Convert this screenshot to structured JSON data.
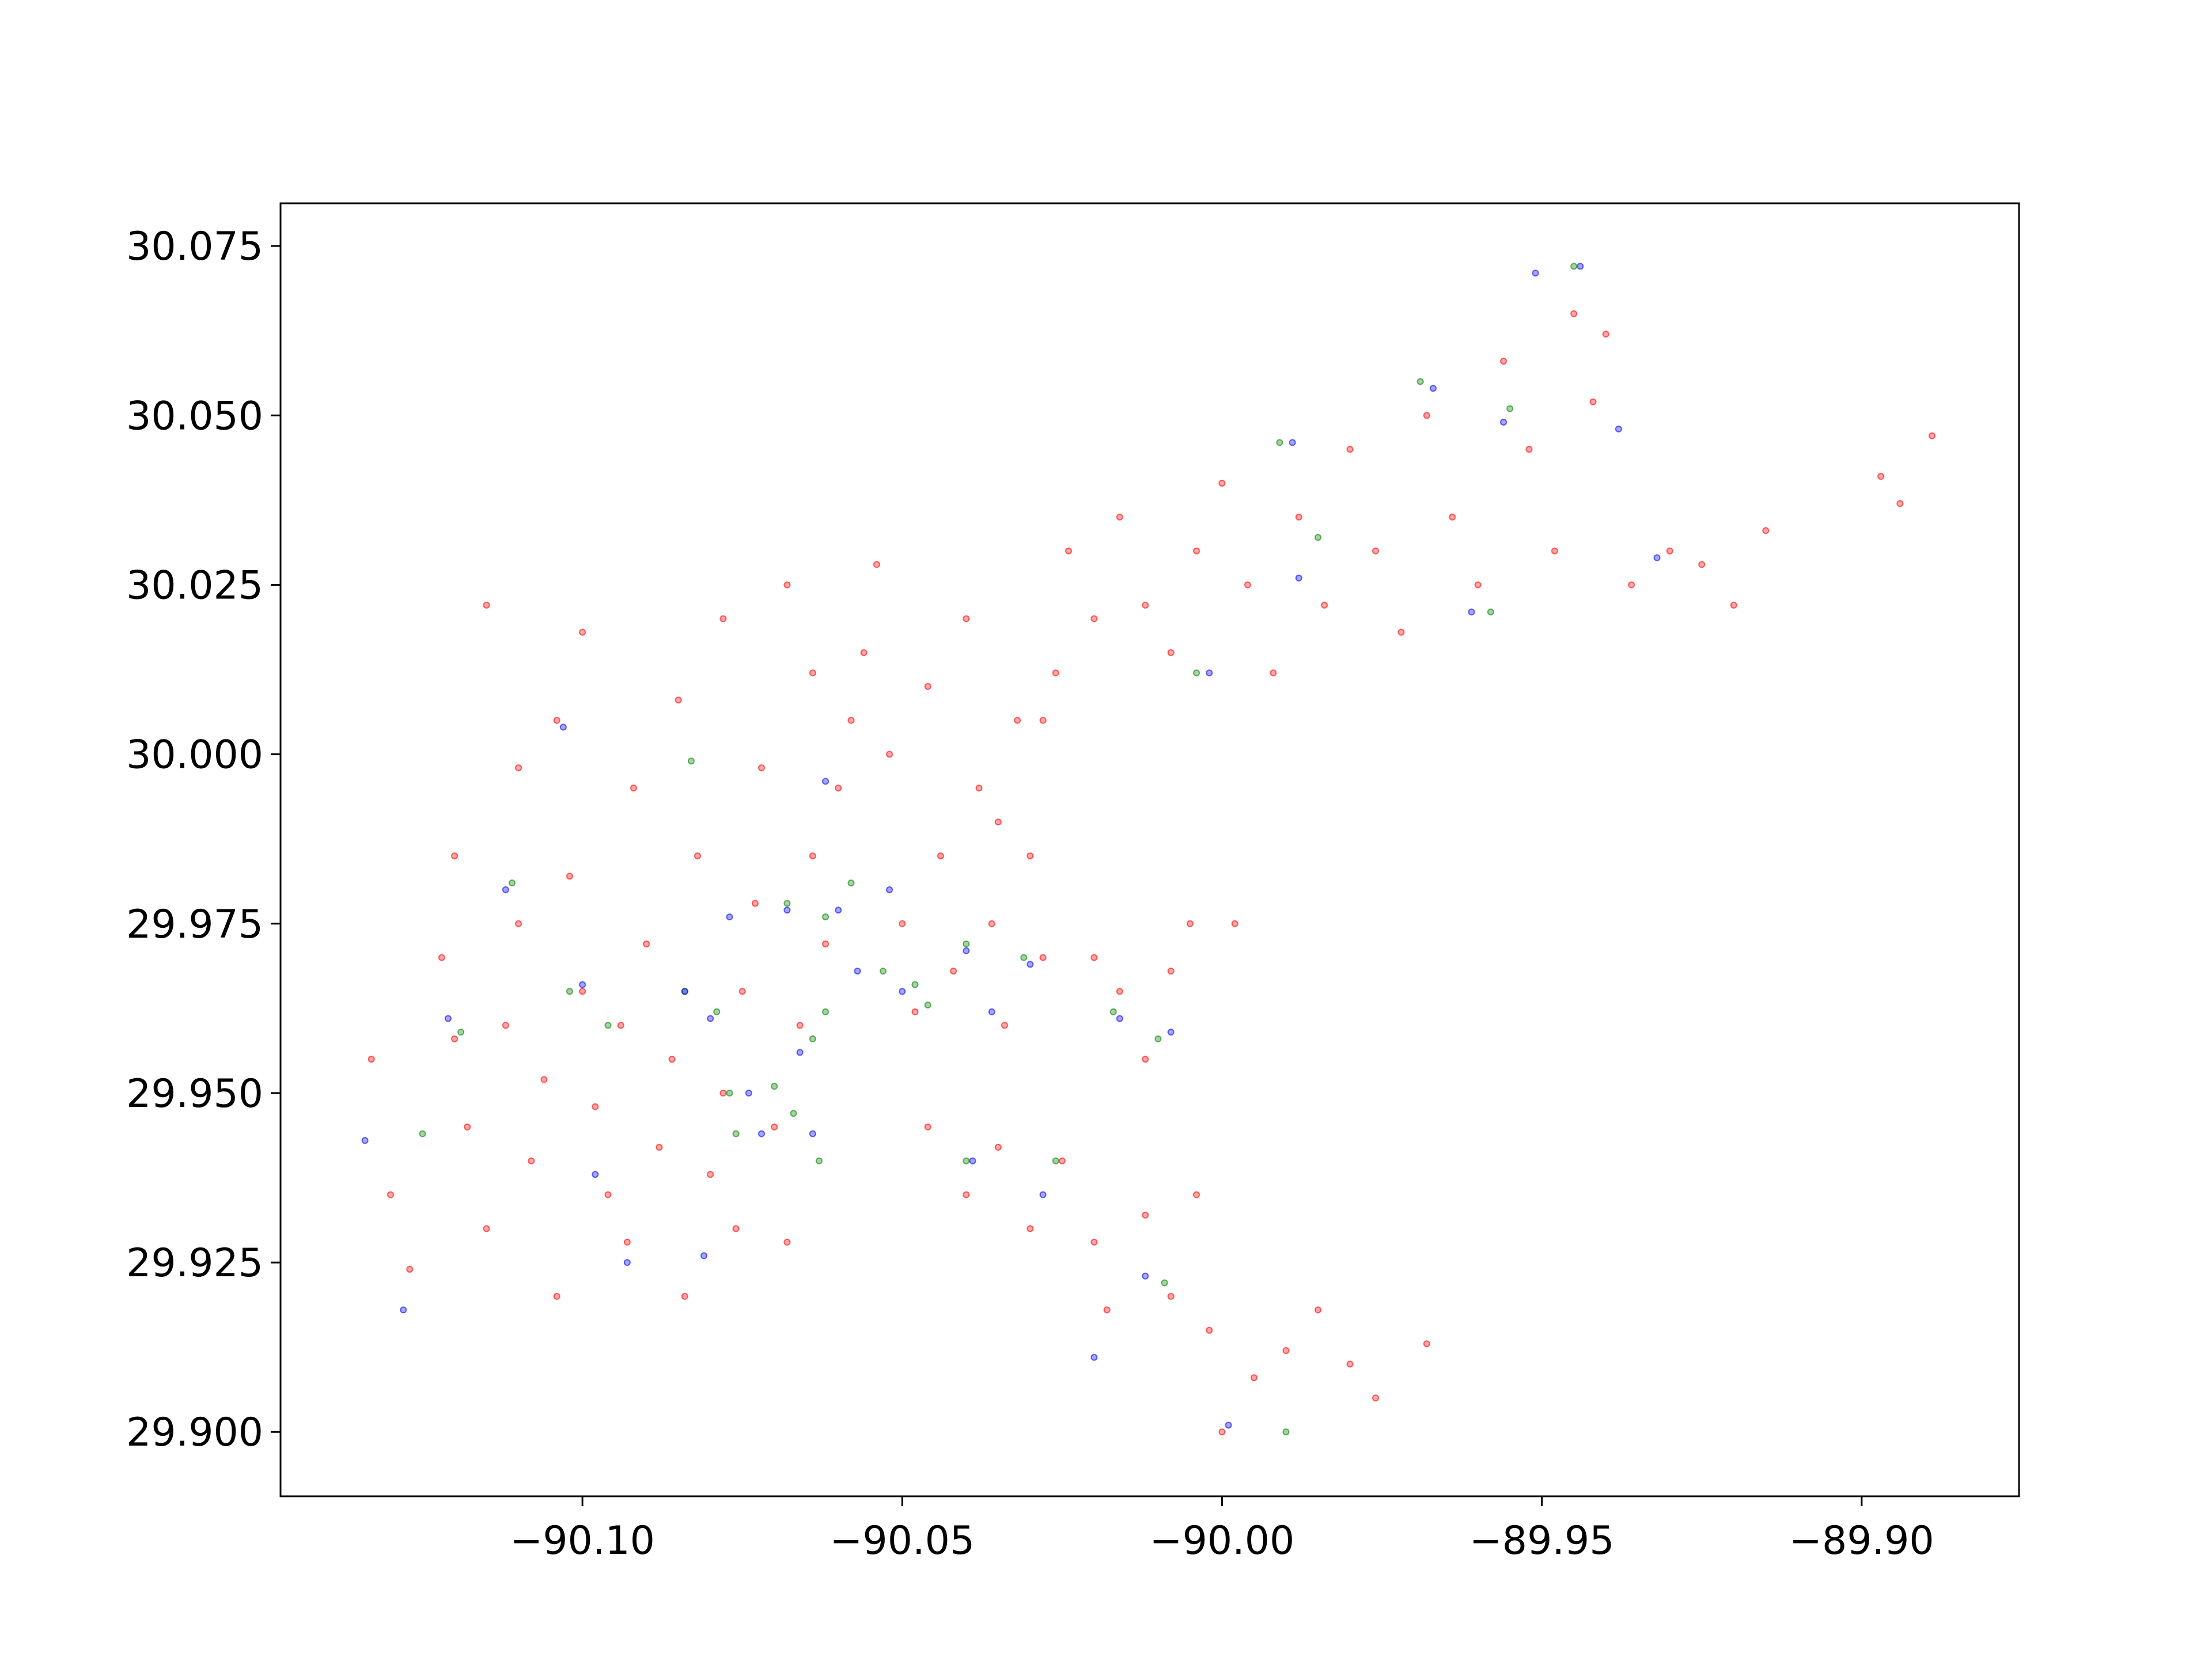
{
  "chart_data": {
    "type": "scatter",
    "xlim": [
      -90.1472,
      -89.8754
    ],
    "ylim": [
      29.8905,
      30.0813
    ],
    "xticks": [
      {
        "value": -90.1,
        "label": "−90.10"
      },
      {
        "value": -90.05,
        "label": "−90.05"
      },
      {
        "value": -90.0,
        "label": "−90.00"
      },
      {
        "value": -89.95,
        "label": "−89.95"
      },
      {
        "value": -89.9,
        "label": "−89.90"
      }
    ],
    "yticks": [
      {
        "value": 29.9,
        "label": "29.900"
      },
      29.925,
      {
        "value": 29.95,
        "label": "29.950"
      },
      29.975,
      {
        "value": 30.0,
        "label": "30.000"
      },
      30.025,
      {
        "value": 30.05,
        "label": "30.050"
      },
      30.075
    ],
    "grid": false,
    "series": [
      {
        "color": "#ff0000",
        "x": [
          -90.133,
          -90.13,
          -90.127,
          -90.122,
          -90.12,
          -90.118,
          -90.115,
          -90.112,
          -90.11,
          -90.108,
          -90.106,
          -90.104,
          -90.102,
          -90.1,
          -90.098,
          -90.096,
          -90.094,
          -90.093,
          -90.09,
          -90.088,
          -90.086,
          -90.084,
          -90.082,
          -90.08,
          -90.078,
          -90.076,
          -90.075,
          -90.073,
          -90.07,
          -90.068,
          -90.066,
          -90.064,
          -90.062,
          -90.06,
          -90.058,
          -90.056,
          -90.054,
          -90.052,
          -90.05,
          -90.048,
          -90.046,
          -90.044,
          -90.042,
          -90.04,
          -90.038,
          -90.036,
          -90.034,
          -90.032,
          -90.03,
          -90.028,
          -90.1,
          -90.092,
          -90.085,
          -90.078,
          -90.072,
          -90.068,
          -90.064,
          -90.11,
          -90.115,
          -90.12,
          -90.104,
          -90.046,
          -90.04,
          -90.035,
          -90.03,
          -90.025,
          -90.02,
          -90.018,
          -90.012,
          -90.008,
          -90.004,
          -90.002,
          -90.0,
          -89.995,
          -89.99,
          -89.985,
          -89.98,
          -89.976,
          -89.968,
          -90.02,
          -90.016,
          -90.012,
          -90.008,
          -90.005,
          -89.998,
          -90.024,
          -90.02,
          -90.016,
          -90.012,
          -90.008,
          -90.004,
          -90.0,
          -89.996,
          -89.992,
          -89.988,
          -89.984,
          -89.98,
          -89.976,
          -89.972,
          -89.968,
          -89.964,
          -89.96,
          -89.956,
          -89.952,
          -89.948,
          -89.945,
          -89.942,
          -89.94,
          -89.936,
          -89.93,
          -89.925,
          -89.92,
          -89.915,
          -89.897,
          -89.894,
          -89.889,
          -90.028,
          -90.035,
          -90.026
        ],
        "y": [
          29.955,
          29.935,
          29.924,
          29.97,
          29.958,
          29.945,
          29.93,
          29.96,
          29.975,
          29.94,
          29.952,
          29.92,
          29.982,
          29.965,
          29.948,
          29.935,
          29.96,
          29.928,
          29.972,
          29.942,
          29.955,
          29.92,
          29.985,
          29.938,
          29.95,
          29.93,
          29.965,
          29.978,
          29.945,
          29.928,
          29.96,
          29.985,
          29.972,
          29.995,
          30.005,
          30.015,
          30.028,
          30.0,
          29.975,
          29.962,
          30.01,
          29.985,
          29.968,
          30.02,
          29.995,
          29.975,
          29.96,
          30.005,
          29.985,
          29.97,
          30.018,
          29.995,
          30.008,
          30.02,
          29.998,
          30.025,
          30.012,
          29.998,
          30.022,
          29.985,
          30.005,
          29.945,
          29.935,
          29.942,
          29.93,
          29.94,
          29.928,
          29.918,
          29.932,
          29.92,
          29.935,
          29.915,
          29.9,
          29.908,
          29.912,
          29.918,
          29.91,
          29.905,
          29.913,
          29.97,
          29.965,
          29.955,
          29.968,
          29.975,
          29.975,
          30.03,
          30.02,
          30.035,
          30.022,
          30.015,
          30.03,
          30.04,
          30.025,
          30.012,
          30.035,
          30.022,
          30.045,
          30.03,
          30.018,
          30.05,
          30.035,
          30.025,
          30.058,
          30.045,
          30.03,
          30.065,
          30.052,
          30.062,
          30.025,
          30.03,
          30.028,
          30.022,
          30.033,
          30.041,
          30.037,
          30.047,
          30.005,
          29.99,
          30.012
        ]
      },
      {
        "color": "#008000",
        "x": [
          -90.083,
          -90.111,
          -90.102,
          -90.096,
          -90.084,
          -90.079,
          -90.068,
          -90.062,
          -90.058,
          -90.053,
          -90.048,
          -90.04,
          -90.031,
          -90.064,
          -90.062,
          -90.077,
          -90.07,
          -90.076,
          -90.067,
          -90.063,
          -90.046,
          -90.017,
          -90.01,
          -90.04,
          -90.026,
          -90.009,
          -89.991,
          -89.969,
          -89.955,
          -89.945,
          -89.958,
          -90.004,
          -89.99,
          -90.125,
          -90.119,
          -89.985
        ],
        "y": [
          29.999,
          29.981,
          29.965,
          29.96,
          29.965,
          29.962,
          29.978,
          29.976,
          29.981,
          29.968,
          29.966,
          29.972,
          29.97,
          29.958,
          29.962,
          29.95,
          29.951,
          29.944,
          29.947,
          29.94,
          29.963,
          29.962,
          29.958,
          29.94,
          29.94,
          29.922,
          30.046,
          30.055,
          30.051,
          30.072,
          30.021,
          30.012,
          29.9,
          29.944,
          29.959,
          30.032
        ]
      },
      {
        "color": "#0000ff",
        "x": [
          -90.103,
          -90.112,
          -90.121,
          -90.134,
          -90.128,
          -90.1,
          -90.084,
          -90.08,
          -90.077,
          -90.068,
          -90.06,
          -90.052,
          -90.057,
          -90.05,
          -90.04,
          -90.03,
          -90.036,
          -90.066,
          -90.074,
          -90.072,
          -90.064,
          -90.098,
          -90.093,
          -90.081,
          -90.016,
          -90.008,
          -90.039,
          -90.028,
          -90.012,
          -90.02,
          -89.999,
          -90.002,
          -89.988,
          -89.989,
          -89.967,
          -89.956,
          -89.961,
          -89.944,
          -89.951,
          -89.938,
          -89.932,
          -90.062
        ],
        "y": [
          30.004,
          29.98,
          29.961,
          29.943,
          29.918,
          29.966,
          29.965,
          29.961,
          29.976,
          29.977,
          29.977,
          29.98,
          29.968,
          29.965,
          29.971,
          29.969,
          29.962,
          29.956,
          29.95,
          29.944,
          29.944,
          29.938,
          29.925,
          29.926,
          29.961,
          29.959,
          29.94,
          29.935,
          29.923,
          29.911,
          29.901,
          30.012,
          30.026,
          30.046,
          30.054,
          30.049,
          30.021,
          30.072,
          30.071,
          30.048,
          30.029,
          29.996
        ]
      }
    ]
  }
}
